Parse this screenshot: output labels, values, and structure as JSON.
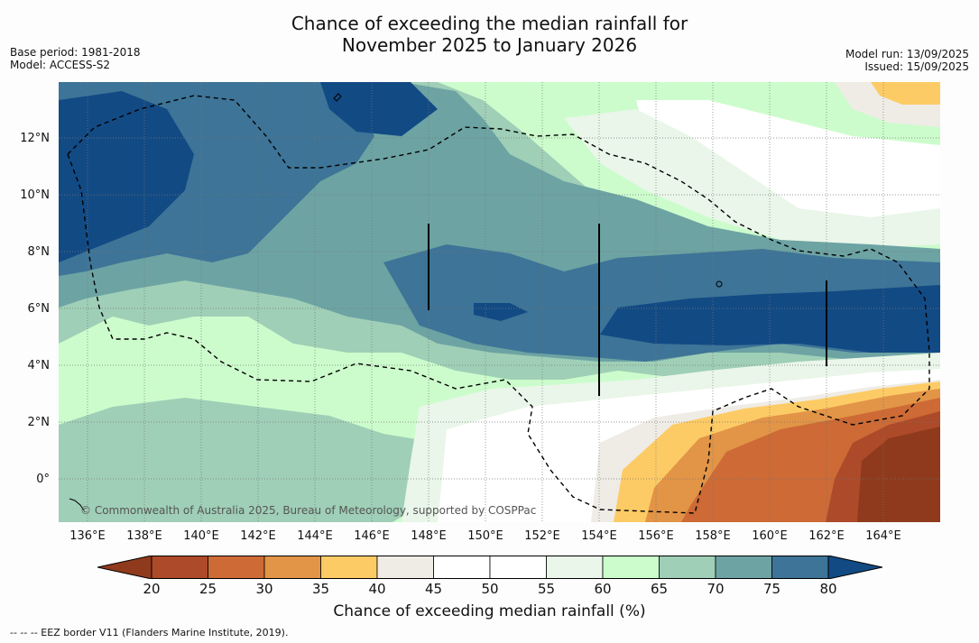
{
  "title_line1": "Chance of exceeding the median rainfall for",
  "title_line2": "November 2025 to January 2026",
  "meta_left": {
    "base_period": "Base period: 1981-2018",
    "model": "Model: ACCESS-S2"
  },
  "meta_right": {
    "model_run": "Model run: 13/09/2025",
    "issued": "Issued: 15/09/2025"
  },
  "copyright": "© Commonwealth of Australia 2025, Bureau of Meteorology, supported by COSPPac",
  "map": {
    "lon_range": [
      135,
      166
    ],
    "lat_range": [
      -1.5,
      14
    ],
    "lat_ticks": [
      {
        "label": "0°",
        "lat": 0
      },
      {
        "label": "2°N",
        "lat": 2
      },
      {
        "label": "4°N",
        "lat": 4
      },
      {
        "label": "6°N",
        "lat": 6
      },
      {
        "label": "8°N",
        "lat": 8
      },
      {
        "label": "10°N",
        "lat": 10
      },
      {
        "label": "12°N",
        "lat": 12
      }
    ],
    "lon_ticks": [
      {
        "label": "136°E",
        "lon": 136
      },
      {
        "label": "138°E",
        "lon": 138
      },
      {
        "label": "140°E",
        "lon": 140
      },
      {
        "label": "142°E",
        "lon": 142
      },
      {
        "label": "144°E",
        "lon": 144
      },
      {
        "label": "146°E",
        "lon": 146
      },
      {
        "label": "148°E",
        "lon": 148
      },
      {
        "label": "150°E",
        "lon": 150
      },
      {
        "label": "152°E",
        "lon": 152
      },
      {
        "label": "154°E",
        "lon": 154
      },
      {
        "label": "156°E",
        "lon": 156
      },
      {
        "label": "158°E",
        "lon": 158
      },
      {
        "label": "160°E",
        "lon": 160
      },
      {
        "label": "162°E",
        "lon": 162
      },
      {
        "label": "164°E",
        "lon": 164
      }
    ]
  },
  "colorbar": {
    "title": "Chance of exceeding median rainfall (%)",
    "under_color": "#8f3a1c",
    "over_color": "#124a84",
    "bins": [
      {
        "low": 20,
        "high": 25,
        "color": "#ad4a29"
      },
      {
        "low": 25,
        "high": 30,
        "color": "#cd6a35"
      },
      {
        "low": 30,
        "high": 35,
        "color": "#e29447"
      },
      {
        "low": 35,
        "high": 40,
        "color": "#fdcb65"
      },
      {
        "low": 40,
        "high": 45,
        "color": "#efece6"
      },
      {
        "low": 45,
        "high": 50,
        "color": "#ffffff"
      },
      {
        "low": 50,
        "high": 55,
        "color": "#ffffff"
      },
      {
        "low": 55,
        "high": 60,
        "color": "#e9f6e9"
      },
      {
        "low": 60,
        "high": 65,
        "color": "#ccfccc"
      },
      {
        "low": 65,
        "high": 70,
        "color": "#9fcfb6"
      },
      {
        "low": 70,
        "high": 75,
        "color": "#6da3a3"
      },
      {
        "low": 75,
        "high": 80,
        "color": "#3d7497"
      }
    ],
    "ticks": [
      "20",
      "25",
      "30",
      "35",
      "40",
      "45",
      "50",
      "55",
      "60",
      "65",
      "70",
      "75",
      "80"
    ]
  },
  "footnote": "-- -- -- EEZ border V11 (Flanders Marine Institute, 2019)."
}
